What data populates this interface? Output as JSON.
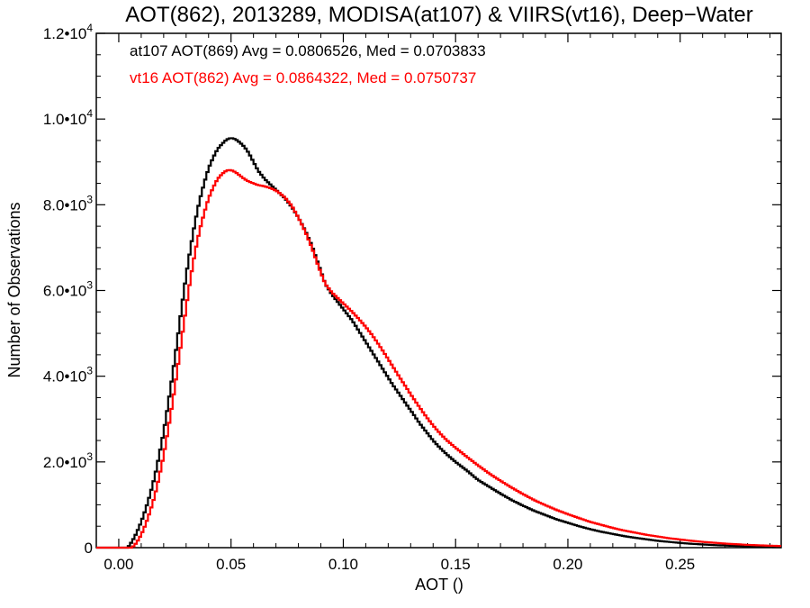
{
  "chart_data": {
    "type": "line",
    "title": "AOT(862), 2013289, MODISA(at107) & VIIRS(vt16), Deep−Water",
    "xlabel": "AOT ()",
    "ylabel": "Number of Observations",
    "xlim": [
      -0.01,
      0.295
    ],
    "ylim": [
      0,
      12000
    ],
    "grid": false,
    "x_ticks": [
      {
        "value": 0.0,
        "label": "0.00"
      },
      {
        "value": 0.05,
        "label": "0.05"
      },
      {
        "value": 0.1,
        "label": "0.10"
      },
      {
        "value": 0.15,
        "label": "0.15"
      },
      {
        "value": 0.2,
        "label": "0.20"
      },
      {
        "value": 0.25,
        "label": "0.25"
      }
    ],
    "y_ticks": [
      {
        "value": 0,
        "label": "0",
        "sup": ""
      },
      {
        "value": 2000,
        "label": "2.0•10",
        "sup": "3"
      },
      {
        "value": 4000,
        "label": "4.0•10",
        "sup": "3"
      },
      {
        "value": 6000,
        "label": "6.0•10",
        "sup": "3"
      },
      {
        "value": 8000,
        "label": "8.0•10",
        "sup": "3"
      },
      {
        "value": 10000,
        "label": "1.0•10",
        "sup": "4"
      },
      {
        "value": 12000,
        "label": "1.2•10",
        "sup": "4"
      }
    ],
    "annotations": [
      {
        "text": "at107 AOT(869) Avg = 0.0806526, Med = 0.0703833",
        "color": "#000000"
      },
      {
        "text": "vt16 AOT(862) Avg = 0.0864322, Med = 0.0750737",
        "color": "#ff0000"
      }
    ],
    "series": [
      {
        "color": "#000000",
        "points": [
          [
            -0.01,
            0
          ],
          [
            0.0,
            0
          ],
          [
            0.004,
            0
          ],
          [
            0.006,
            150
          ],
          [
            0.008,
            350
          ],
          [
            0.01,
            600
          ],
          [
            0.012,
            900
          ],
          [
            0.014,
            1250
          ],
          [
            0.016,
            1650
          ],
          [
            0.018,
            2150
          ],
          [
            0.02,
            2700
          ],
          [
            0.022,
            3350
          ],
          [
            0.024,
            4050
          ],
          [
            0.026,
            4800
          ],
          [
            0.028,
            5600
          ],
          [
            0.03,
            6350
          ],
          [
            0.032,
            7000
          ],
          [
            0.034,
            7600
          ],
          [
            0.036,
            8100
          ],
          [
            0.038,
            8500
          ],
          [
            0.04,
            8850
          ],
          [
            0.042,
            9100
          ],
          [
            0.044,
            9300
          ],
          [
            0.046,
            9420
          ],
          [
            0.048,
            9520
          ],
          [
            0.05,
            9560
          ],
          [
            0.052,
            9530
          ],
          [
            0.054,
            9450
          ],
          [
            0.056,
            9350
          ],
          [
            0.058,
            9200
          ],
          [
            0.06,
            9000
          ],
          [
            0.062,
            8800
          ],
          [
            0.065,
            8600
          ],
          [
            0.068,
            8450
          ],
          [
            0.071,
            8300
          ],
          [
            0.074,
            8150
          ],
          [
            0.077,
            7950
          ],
          [
            0.08,
            7700
          ],
          [
            0.083,
            7400
          ],
          [
            0.086,
            7050
          ],
          [
            0.089,
            6600
          ],
          [
            0.092,
            6150
          ],
          [
            0.095,
            5900
          ],
          [
            0.098,
            5700
          ],
          [
            0.101,
            5500
          ],
          [
            0.104,
            5300
          ],
          [
            0.107,
            5050
          ],
          [
            0.11,
            4800
          ],
          [
            0.113,
            4550
          ],
          [
            0.116,
            4300
          ],
          [
            0.119,
            4050
          ],
          [
            0.122,
            3800
          ],
          [
            0.125,
            3580
          ],
          [
            0.128,
            3350
          ],
          [
            0.131,
            3130
          ],
          [
            0.134,
            2900
          ],
          [
            0.137,
            2700
          ],
          [
            0.14,
            2500
          ],
          [
            0.143,
            2330
          ],
          [
            0.146,
            2180
          ],
          [
            0.15,
            2000
          ],
          [
            0.155,
            1800
          ],
          [
            0.16,
            1580
          ],
          [
            0.165,
            1420
          ],
          [
            0.17,
            1260
          ],
          [
            0.175,
            1110
          ],
          [
            0.18,
            980
          ],
          [
            0.185,
            860
          ],
          [
            0.19,
            760
          ],
          [
            0.195,
            660
          ],
          [
            0.2,
            580
          ],
          [
            0.205,
            500
          ],
          [
            0.21,
            430
          ],
          [
            0.215,
            370
          ],
          [
            0.22,
            320
          ],
          [
            0.225,
            270
          ],
          [
            0.23,
            230
          ],
          [
            0.235,
            195
          ],
          [
            0.24,
            160
          ],
          [
            0.245,
            135
          ],
          [
            0.25,
            110
          ],
          [
            0.255,
            90
          ],
          [
            0.26,
            75
          ],
          [
            0.265,
            60
          ],
          [
            0.27,
            50
          ],
          [
            0.275,
            40
          ],
          [
            0.28,
            32
          ],
          [
            0.285,
            26
          ],
          [
            0.29,
            20
          ],
          [
            0.295,
            15
          ]
        ]
      },
      {
        "color": "#ff0000",
        "points": [
          [
            -0.01,
            0
          ],
          [
            0.0,
            0
          ],
          [
            0.006,
            0
          ],
          [
            0.008,
            120
          ],
          [
            0.01,
            300
          ],
          [
            0.012,
            550
          ],
          [
            0.014,
            850
          ],
          [
            0.016,
            1200
          ],
          [
            0.018,
            1650
          ],
          [
            0.02,
            2150
          ],
          [
            0.022,
            2750
          ],
          [
            0.024,
            3400
          ],
          [
            0.026,
            4100
          ],
          [
            0.028,
            4850
          ],
          [
            0.03,
            5600
          ],
          [
            0.032,
            6300
          ],
          [
            0.034,
            6900
          ],
          [
            0.036,
            7400
          ],
          [
            0.038,
            7800
          ],
          [
            0.04,
            8150
          ],
          [
            0.042,
            8400
          ],
          [
            0.044,
            8600
          ],
          [
            0.046,
            8720
          ],
          [
            0.048,
            8800
          ],
          [
            0.05,
            8810
          ],
          [
            0.052,
            8760
          ],
          [
            0.054,
            8680
          ],
          [
            0.056,
            8600
          ],
          [
            0.058,
            8540
          ],
          [
            0.06,
            8500
          ],
          [
            0.062,
            8460
          ],
          [
            0.065,
            8430
          ],
          [
            0.068,
            8380
          ],
          [
            0.071,
            8300
          ],
          [
            0.074,
            8170
          ],
          [
            0.077,
            7980
          ],
          [
            0.08,
            7700
          ],
          [
            0.083,
            7380
          ],
          [
            0.086,
            7000
          ],
          [
            0.089,
            6550
          ],
          [
            0.092,
            6150
          ],
          [
            0.095,
            5950
          ],
          [
            0.098,
            5800
          ],
          [
            0.101,
            5650
          ],
          [
            0.104,
            5500
          ],
          [
            0.107,
            5330
          ],
          [
            0.11,
            5150
          ],
          [
            0.113,
            4950
          ],
          [
            0.116,
            4720
          ],
          [
            0.119,
            4480
          ],
          [
            0.122,
            4230
          ],
          [
            0.125,
            3980
          ],
          [
            0.128,
            3740
          ],
          [
            0.131,
            3500
          ],
          [
            0.134,
            3270
          ],
          [
            0.137,
            3050
          ],
          [
            0.14,
            2850
          ],
          [
            0.143,
            2670
          ],
          [
            0.146,
            2510
          ],
          [
            0.15,
            2330
          ],
          [
            0.155,
            2120
          ],
          [
            0.16,
            1920
          ],
          [
            0.165,
            1730
          ],
          [
            0.17,
            1560
          ],
          [
            0.175,
            1400
          ],
          [
            0.18,
            1250
          ],
          [
            0.185,
            1110
          ],
          [
            0.19,
            990
          ],
          [
            0.195,
            880
          ],
          [
            0.2,
            780
          ],
          [
            0.205,
            690
          ],
          [
            0.21,
            600
          ],
          [
            0.215,
            530
          ],
          [
            0.22,
            460
          ],
          [
            0.225,
            400
          ],
          [
            0.23,
            350
          ],
          [
            0.235,
            300
          ],
          [
            0.24,
            260
          ],
          [
            0.245,
            220
          ],
          [
            0.25,
            190
          ],
          [
            0.255,
            160
          ],
          [
            0.26,
            135
          ],
          [
            0.265,
            115
          ],
          [
            0.27,
            95
          ],
          [
            0.275,
            80
          ],
          [
            0.28,
            65
          ],
          [
            0.285,
            55
          ],
          [
            0.29,
            45
          ],
          [
            0.295,
            38
          ]
        ]
      }
    ]
  }
}
